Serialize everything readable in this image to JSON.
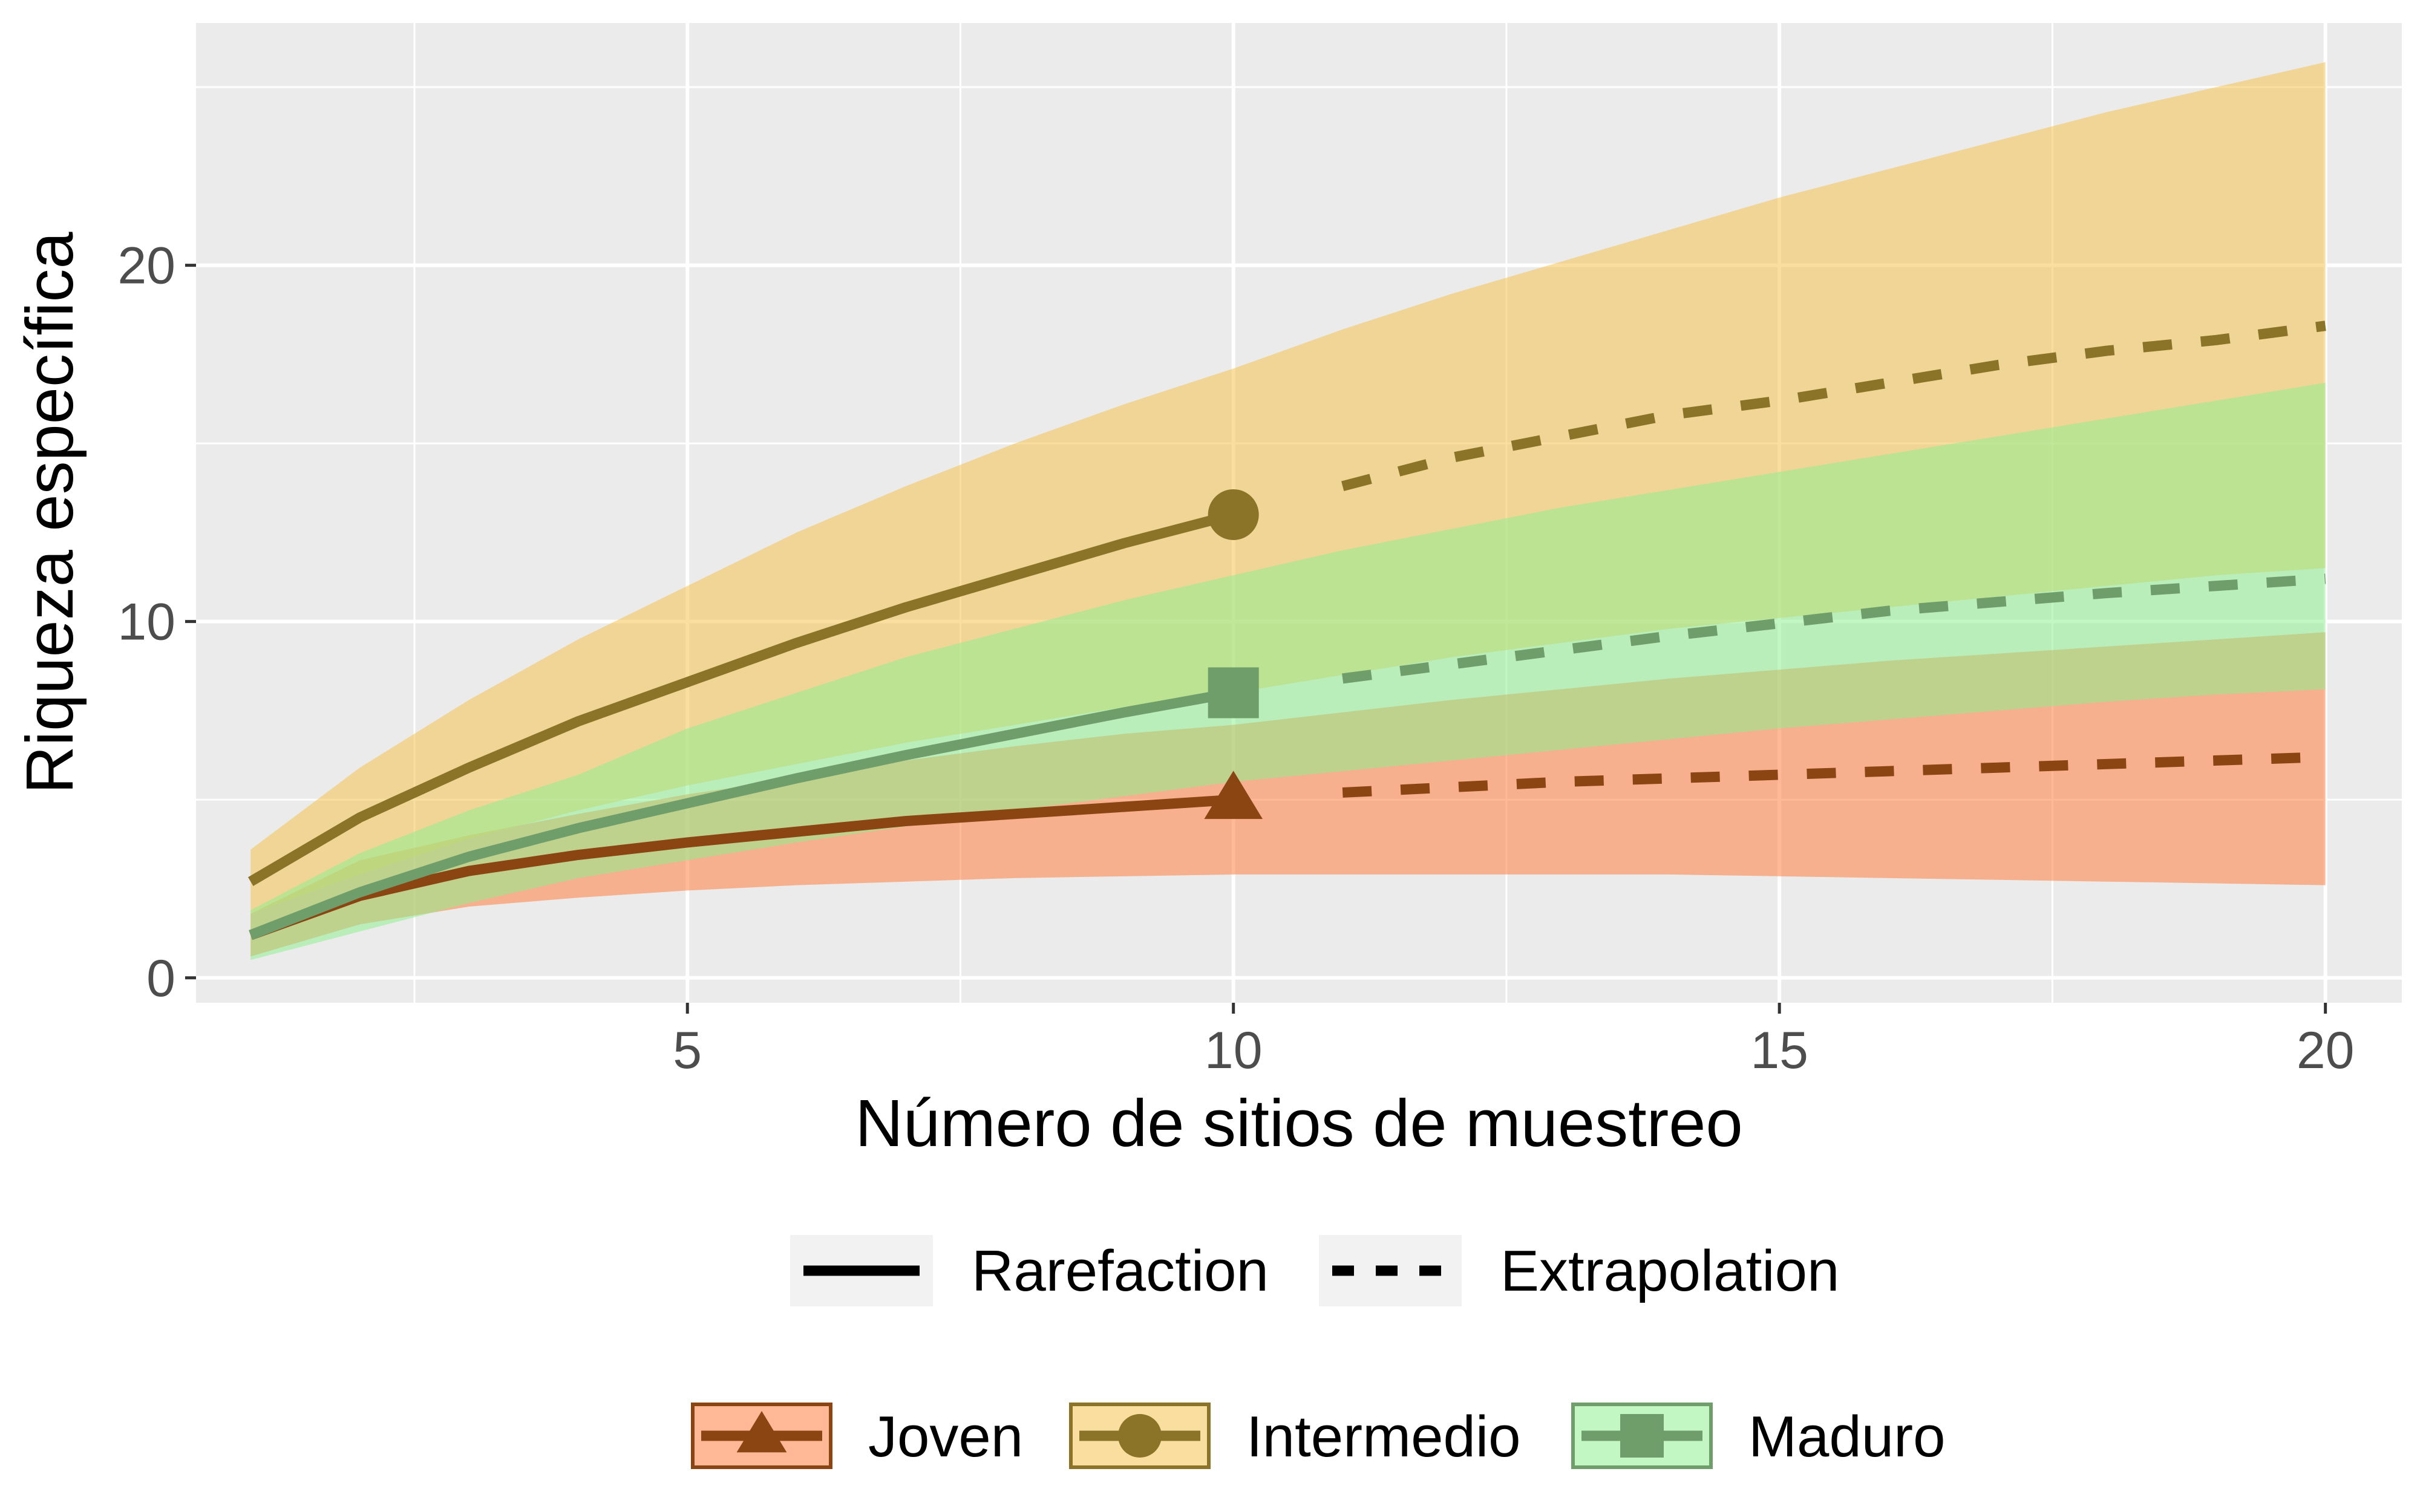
{
  "chart_data": {
    "type": "line",
    "xlabel": "Número de sitios de muestreo",
    "ylabel": "Riqueza específica",
    "xlim": [
      0.5,
      20.7
    ],
    "ylim": [
      -0.7,
      26.8
    ],
    "x_ticks": [
      5,
      10,
      15,
      20
    ],
    "y_ticks": [
      0,
      10,
      20
    ],
    "grid": true,
    "legend_position": "bottom",
    "linetype_legend": [
      {
        "label": "Rarefaction",
        "style": "solid"
      },
      {
        "label": "Extrapolation",
        "style": "dashed"
      }
    ],
    "observed_sites": 10,
    "series": [
      {
        "name": "Joven",
        "color": "#8B4513",
        "fill": "#FF7F3F",
        "marker": "triangle",
        "x": [
          1,
          2,
          3,
          4,
          5,
          6,
          7,
          8,
          9,
          10,
          11,
          12,
          13,
          14,
          15,
          16,
          17,
          18,
          19,
          20
        ],
        "y": [
          1.2,
          2.3,
          3.0,
          3.45,
          3.8,
          4.1,
          4.4,
          4.6,
          4.8,
          5.0,
          5.2,
          5.35,
          5.5,
          5.6,
          5.7,
          5.8,
          5.9,
          6.0,
          6.1,
          6.2
        ],
        "lower": [
          0.6,
          1.5,
          2.0,
          2.25,
          2.45,
          2.6,
          2.7,
          2.8,
          2.85,
          2.9,
          2.9,
          2.9,
          2.9,
          2.9,
          2.85,
          2.8,
          2.75,
          2.7,
          2.65,
          2.6
        ],
        "upper": [
          1.8,
          3.3,
          4.0,
          4.6,
          5.15,
          5.6,
          6.1,
          6.5,
          6.85,
          7.1,
          7.45,
          7.8,
          8.1,
          8.4,
          8.65,
          8.9,
          9.1,
          9.3,
          9.5,
          9.7
        ]
      },
      {
        "name": "Intermedio",
        "color": "#8B7328",
        "fill": "#F5C350",
        "marker": "circle",
        "x": [
          1,
          2,
          3,
          4,
          5,
          6,
          7,
          8,
          9,
          10,
          11,
          12,
          13,
          14,
          15,
          16,
          17,
          18,
          19,
          20
        ],
        "y": [
          2.7,
          4.5,
          5.9,
          7.2,
          8.3,
          9.4,
          10.4,
          11.3,
          12.2,
          13.0,
          13.8,
          14.6,
          15.2,
          15.8,
          16.2,
          16.7,
          17.2,
          17.6,
          17.9,
          18.3
        ],
        "lower": [
          1.8,
          2.9,
          3.9,
          4.7,
          5.4,
          6.0,
          6.6,
          7.1,
          7.6,
          8.0,
          8.5,
          9.0,
          9.4,
          9.8,
          10.1,
          10.4,
          10.7,
          11.0,
          11.3,
          11.5
        ],
        "upper": [
          3.6,
          5.9,
          7.8,
          9.5,
          11.0,
          12.5,
          13.8,
          15.0,
          16.1,
          17.1,
          18.2,
          19.2,
          20.1,
          21.0,
          21.9,
          22.7,
          23.5,
          24.3,
          25.0,
          25.7
        ]
      },
      {
        "name": "Maduro",
        "color": "#6F9E6B",
        "fill": "#90EE90",
        "marker": "square",
        "x": [
          1,
          2,
          3,
          4,
          5,
          6,
          7,
          8,
          9,
          10,
          11,
          12,
          13,
          14,
          15,
          16,
          17,
          18,
          19,
          20
        ],
        "y": [
          1.2,
          2.4,
          3.4,
          4.2,
          4.9,
          5.6,
          6.25,
          6.85,
          7.45,
          8.0,
          8.4,
          8.8,
          9.2,
          9.6,
          9.95,
          10.3,
          10.55,
          10.8,
          11.0,
          11.2
        ],
        "lower": [
          0.5,
          1.3,
          2.1,
          2.8,
          3.3,
          3.8,
          4.25,
          4.7,
          5.1,
          5.5,
          5.8,
          6.1,
          6.4,
          6.7,
          7.0,
          7.25,
          7.5,
          7.75,
          7.95,
          8.1
        ],
        "upper": [
          1.9,
          3.5,
          4.7,
          5.7,
          6.5,
          7.3,
          8.0,
          8.6,
          9.15,
          9.6,
          9.9,
          10.1,
          10.3,
          10.45,
          10.55,
          10.65,
          10.75,
          10.85,
          10.9,
          11.0
        ],
        "upper_ext": [
          1.9,
          3.5,
          4.7,
          5.7,
          7.0,
          8.0,
          9.0,
          9.8,
          10.6,
          11.3,
          12.0,
          12.6,
          13.2,
          13.7,
          14.2,
          14.7,
          15.2,
          15.7,
          16.2,
          16.7
        ]
      }
    ]
  }
}
